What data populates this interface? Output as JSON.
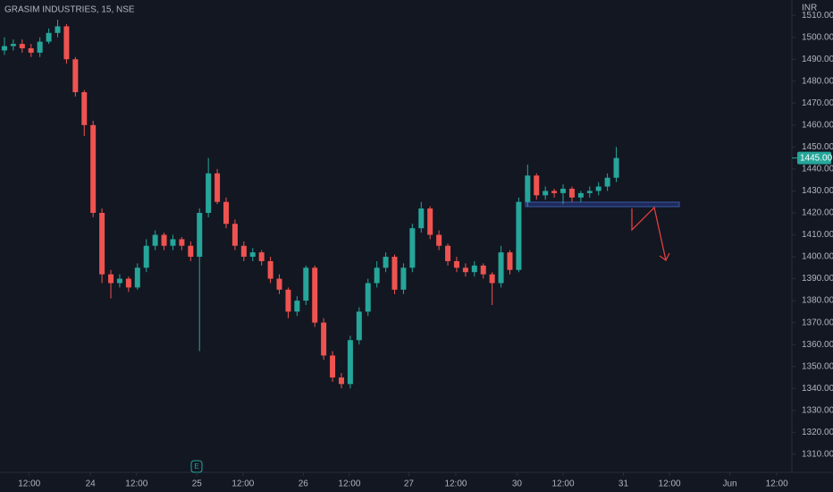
{
  "chart_data": {
    "type": "candlestick",
    "title": "GRASIM INDUSTRIES, 15, NSE",
    "currency": "INR",
    "up_color": "#26a69a",
    "down_color": "#ef5350",
    "grid": false,
    "open": [
      1494,
      1496,
      1497,
      1495,
      1493,
      1498,
      1502,
      1505,
      1490,
      1475,
      1460,
      1420,
      1392,
      1388,
      1390,
      1386,
      1395,
      1405,
      1410,
      1405,
      1408,
      1405,
      1400,
      1420,
      1438,
      1425,
      1415,
      1405,
      1400,
      1402,
      1398,
      1390,
      1385,
      1375,
      1380,
      1395,
      1370,
      1355,
      1345,
      1342,
      1362,
      1375,
      1388,
      1395,
      1400,
      1385,
      1395,
      1413,
      1422,
      1410,
      1405,
      1398,
      1395,
      1393,
      1396,
      1392,
      1388,
      1402,
      1394,
      1425,
      1437,
      1428,
      1430,
      1429,
      1431,
      1427,
      1429,
      1430,
      1432,
      1436
    ],
    "high": [
      1500,
      1499,
      1499,
      1497,
      1500,
      1504,
      1508,
      1506,
      1491,
      1476,
      1462,
      1422,
      1394,
      1392,
      1391,
      1397,
      1408,
      1412,
      1411,
      1410,
      1409,
      1407,
      1422,
      1445,
      1440,
      1427,
      1417,
      1407,
      1404,
      1403,
      1400,
      1392,
      1386,
      1382,
      1396,
      1396,
      1372,
      1357,
      1347,
      1364,
      1377,
      1390,
      1398,
      1402,
      1401,
      1397,
      1415,
      1425,
      1423,
      1412,
      1406,
      1400,
      1397,
      1398,
      1397,
      1393,
      1405,
      1403,
      1427,
      1442,
      1438,
      1432,
      1431,
      1433,
      1432,
      1430,
      1432,
      1434,
      1438,
      1450
    ],
    "low": [
      1492,
      1494,
      1493,
      1491,
      1491,
      1497,
      1500,
      1488,
      1473,
      1455,
      1418,
      1388,
      1381,
      1386,
      1384,
      1385,
      1393,
      1403,
      1403,
      1403,
      1403,
      1398,
      1357,
      1418,
      1424,
      1413,
      1403,
      1398,
      1398,
      1396,
      1388,
      1383,
      1372,
      1373,
      1378,
      1368,
      1353,
      1343,
      1340,
      1340,
      1360,
      1373,
      1386,
      1393,
      1383,
      1383,
      1393,
      1411,
      1408,
      1403,
      1396,
      1393,
      1391,
      1391,
      1390,
      1378,
      1386,
      1392,
      1393,
      1423,
      1426,
      1426,
      1427,
      1424,
      1425,
      1425,
      1427,
      1428,
      1430,
      1434
    ],
    "close": [
      1496,
      1497,
      1495,
      1493,
      1498,
      1502,
      1505,
      1490,
      1475,
      1460,
      1420,
      1392,
      1388,
      1390,
      1386,
      1395,
      1405,
      1410,
      1405,
      1408,
      1405,
      1400,
      1420,
      1438,
      1425,
      1415,
      1405,
      1400,
      1402,
      1398,
      1390,
      1385,
      1375,
      1380,
      1395,
      1370,
      1355,
      1345,
      1342,
      1362,
      1375,
      1388,
      1395,
      1400,
      1385,
      1395,
      1413,
      1422,
      1410,
      1405,
      1398,
      1395,
      1393,
      1396,
      1392,
      1388,
      1402,
      1394,
      1425,
      1437,
      1428,
      1430,
      1429,
      1431,
      1427,
      1429,
      1430,
      1432,
      1436,
      1445
    ],
    "xlim": [
      0,
      89.2
    ],
    "xticks": [
      {
        "value": 3.3,
        "label": "12:00"
      },
      {
        "value": 10.2,
        "label": "24"
      },
      {
        "value": 15.4,
        "label": "12:00"
      },
      {
        "value": 22.2,
        "label": "25"
      },
      {
        "value": 27.4,
        "label": "12:00"
      },
      {
        "value": 34.2,
        "label": "26"
      },
      {
        "value": 39.4,
        "label": "12:00"
      },
      {
        "value": 46.1,
        "label": "27"
      },
      {
        "value": 51.4,
        "label": "12:00"
      },
      {
        "value": 58.3,
        "label": "30"
      },
      {
        "value": 63.5,
        "label": "12:00"
      },
      {
        "value": 70.3,
        "label": "31"
      },
      {
        "value": 75.5,
        "label": "12:00"
      },
      {
        "value": 82.3,
        "label": "Jun"
      },
      {
        "value": 87.6,
        "label": "12:00"
      }
    ],
    "ylim": [
      1303,
      1517
    ],
    "yticks": [
      {
        "value": 1310,
        "label": "1310.00"
      },
      {
        "value": 1320,
        "label": "1320.00"
      },
      {
        "value": 1330,
        "label": "1330.00"
      },
      {
        "value": 1340,
        "label": "1340.00"
      },
      {
        "value": 1350,
        "label": "1350.00"
      },
      {
        "value": 1360,
        "label": "1360.00"
      },
      {
        "value": 1370,
        "label": "1370.00"
      },
      {
        "value": 1380,
        "label": "1380.00"
      },
      {
        "value": 1390,
        "label": "1390.00"
      },
      {
        "value": 1400,
        "label": "1400.00"
      },
      {
        "value": 1410,
        "label": "1410.00"
      },
      {
        "value": 1420,
        "label": "1420.00"
      },
      {
        "value": 1430,
        "label": "1430.00"
      },
      {
        "value": 1440,
        "label": "1440.00"
      },
      {
        "value": 1450,
        "label": "1450.00"
      },
      {
        "value": 1460,
        "label": "1460.00"
      },
      {
        "value": 1470,
        "label": "1470.00"
      },
      {
        "value": 1480,
        "label": "1480.00"
      },
      {
        "value": 1490,
        "label": "1490.00"
      },
      {
        "value": 1500,
        "label": "1500.00"
      },
      {
        "value": 1510,
        "label": "1510.00"
      }
    ],
    "price_tag": {
      "value": 1445,
      "label": "1445.00"
    },
    "event_marker": "E"
  }
}
